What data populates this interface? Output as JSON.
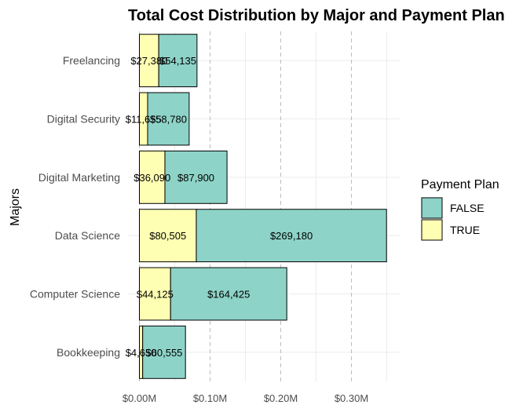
{
  "chart_data": {
    "type": "bar",
    "orientation": "horizontal",
    "stacked": true,
    "title": "Total Cost Distribution by Major and Payment Plan",
    "xlabel": "",
    "ylabel": "Majors",
    "categories": [
      "Freelancing",
      "Digital Security",
      "Digital Marketing",
      "Data Science",
      "Computer Science",
      "Bookkeeping"
    ],
    "series": [
      {
        "name": "TRUE",
        "color": "#ffffb3",
        "values": [
          27380,
          11655,
          36090,
          80505,
          44125,
          4650
        ]
      },
      {
        "name": "FALSE",
        "color": "#8dd3c7",
        "values": [
          54135,
          58780,
          87900,
          269180,
          164425,
          60555
        ]
      }
    ],
    "data_labels": {
      "TRUE": [
        "$27,380",
        "$11,655",
        "$36,090",
        "$80,505",
        "$44,125",
        "$4,650"
      ],
      "FALSE": [
        "$54,135",
        "$58,780",
        "$87,900",
        "$269,180",
        "$164,425",
        "$60,555"
      ]
    },
    "xlim": [
      0,
      370000
    ],
    "x_ticks": [
      0,
      100000,
      200000,
      300000
    ],
    "x_tick_labels": [
      "$0.00M",
      "$0.10M",
      "$0.20M",
      "$0.30M"
    ],
    "grid": true,
    "legend": {
      "title": "Payment Plan",
      "placement": "right",
      "entries": [
        {
          "label": "FALSE",
          "color": "#8dd3c7"
        },
        {
          "label": "TRUE",
          "color": "#ffffb3"
        }
      ]
    }
  }
}
